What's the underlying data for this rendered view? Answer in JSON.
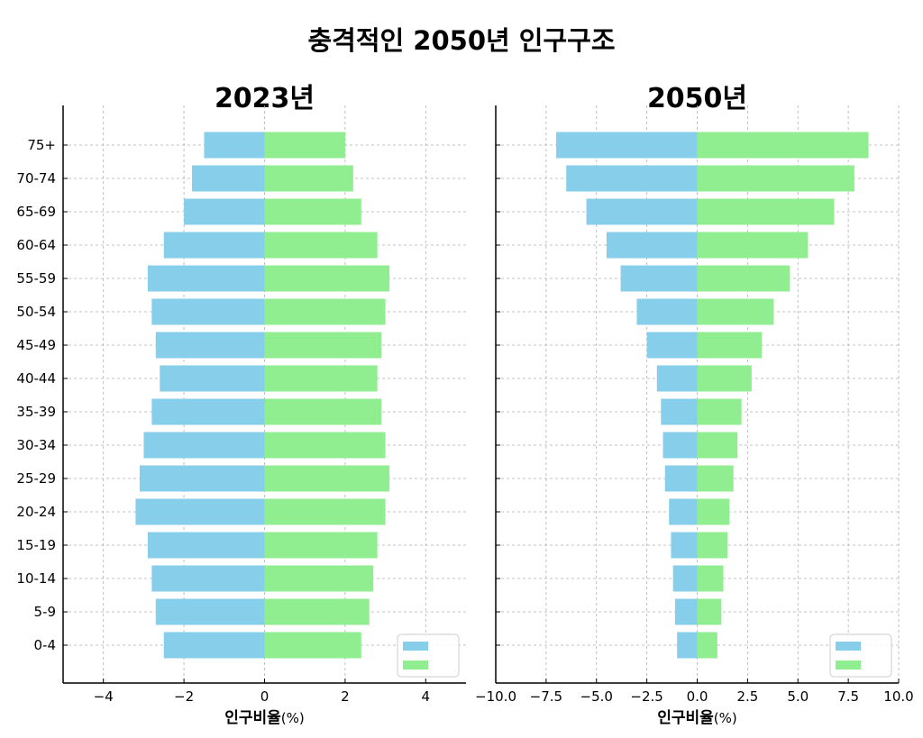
{
  "suptitle": "충격적인 2050년 인구구조",
  "colors": {
    "male": "#87CEEB",
    "female": "#90EE90",
    "axis": "#000000",
    "grid": "#b0b0b0"
  },
  "chart_data": [
    {
      "type": "bar",
      "orientation": "horizontal",
      "title": "2023년",
      "xlabel": "인구비율",
      "xlabel_unit": "(%)",
      "ylabel": "",
      "xlim": [
        -5,
        5
      ],
      "xticks": [
        -4,
        -2,
        0,
        2,
        4
      ],
      "xtick_labels": [
        "−4",
        "−2",
        "0",
        "2",
        "4"
      ],
      "grid": true,
      "legend_position": "lower right",
      "legend_entries": [
        "",
        ""
      ],
      "categories": [
        "0-4",
        "5-9",
        "10-14",
        "15-19",
        "20-24",
        "25-29",
        "30-34",
        "35-39",
        "40-44",
        "45-49",
        "50-54",
        "55-59",
        "60-64",
        "65-69",
        "70-74",
        "75+"
      ],
      "series": [
        {
          "name": "",
          "color": "#87CEEB",
          "values": [
            -2.5,
            -2.7,
            -2.8,
            -2.9,
            -3.2,
            -3.1,
            -3.0,
            -2.8,
            -2.6,
            -2.7,
            -2.8,
            -2.9,
            -2.5,
            -2.0,
            -1.8,
            -1.5
          ]
        },
        {
          "name": "",
          "color": "#90EE90",
          "values": [
            2.4,
            2.6,
            2.7,
            2.8,
            3.0,
            3.1,
            3.0,
            2.9,
            2.8,
            2.9,
            3.0,
            3.1,
            2.8,
            2.4,
            2.2,
            2.0
          ]
        }
      ]
    },
    {
      "type": "bar",
      "orientation": "horizontal",
      "title": "2050년",
      "xlabel": "인구비율",
      "xlabel_unit": "(%)",
      "ylabel": "",
      "xlim": [
        -10,
        10
      ],
      "xticks": [
        -10,
        -7.5,
        -5,
        -2.5,
        0,
        2.5,
        5,
        7.5,
        10
      ],
      "xtick_labels": [
        "−10.0",
        "−7.5",
        "−5.0",
        "−2.5",
        "0.0",
        "2.5",
        "5.0",
        "7.5",
        "10.0"
      ],
      "grid": true,
      "legend_position": "lower right",
      "legend_entries": [
        "",
        ""
      ],
      "categories": [
        "0-4",
        "5-9",
        "10-14",
        "15-19",
        "20-24",
        "25-29",
        "30-34",
        "35-39",
        "40-44",
        "45-49",
        "50-54",
        "55-59",
        "60-64",
        "65-69",
        "70-74",
        "75+"
      ],
      "series": [
        {
          "name": "",
          "color": "#87CEEB",
          "values": [
            -1.0,
            -1.1,
            -1.2,
            -1.3,
            -1.4,
            -1.6,
            -1.7,
            -1.8,
            -2.0,
            -2.5,
            -3.0,
            -3.8,
            -4.5,
            -5.5,
            -6.5,
            -7.0
          ]
        },
        {
          "name": "",
          "color": "#90EE90",
          "values": [
            1.0,
            1.2,
            1.3,
            1.5,
            1.6,
            1.8,
            2.0,
            2.2,
            2.7,
            3.2,
            3.8,
            4.6,
            5.5,
            6.8,
            7.8,
            8.5
          ]
        }
      ]
    }
  ]
}
